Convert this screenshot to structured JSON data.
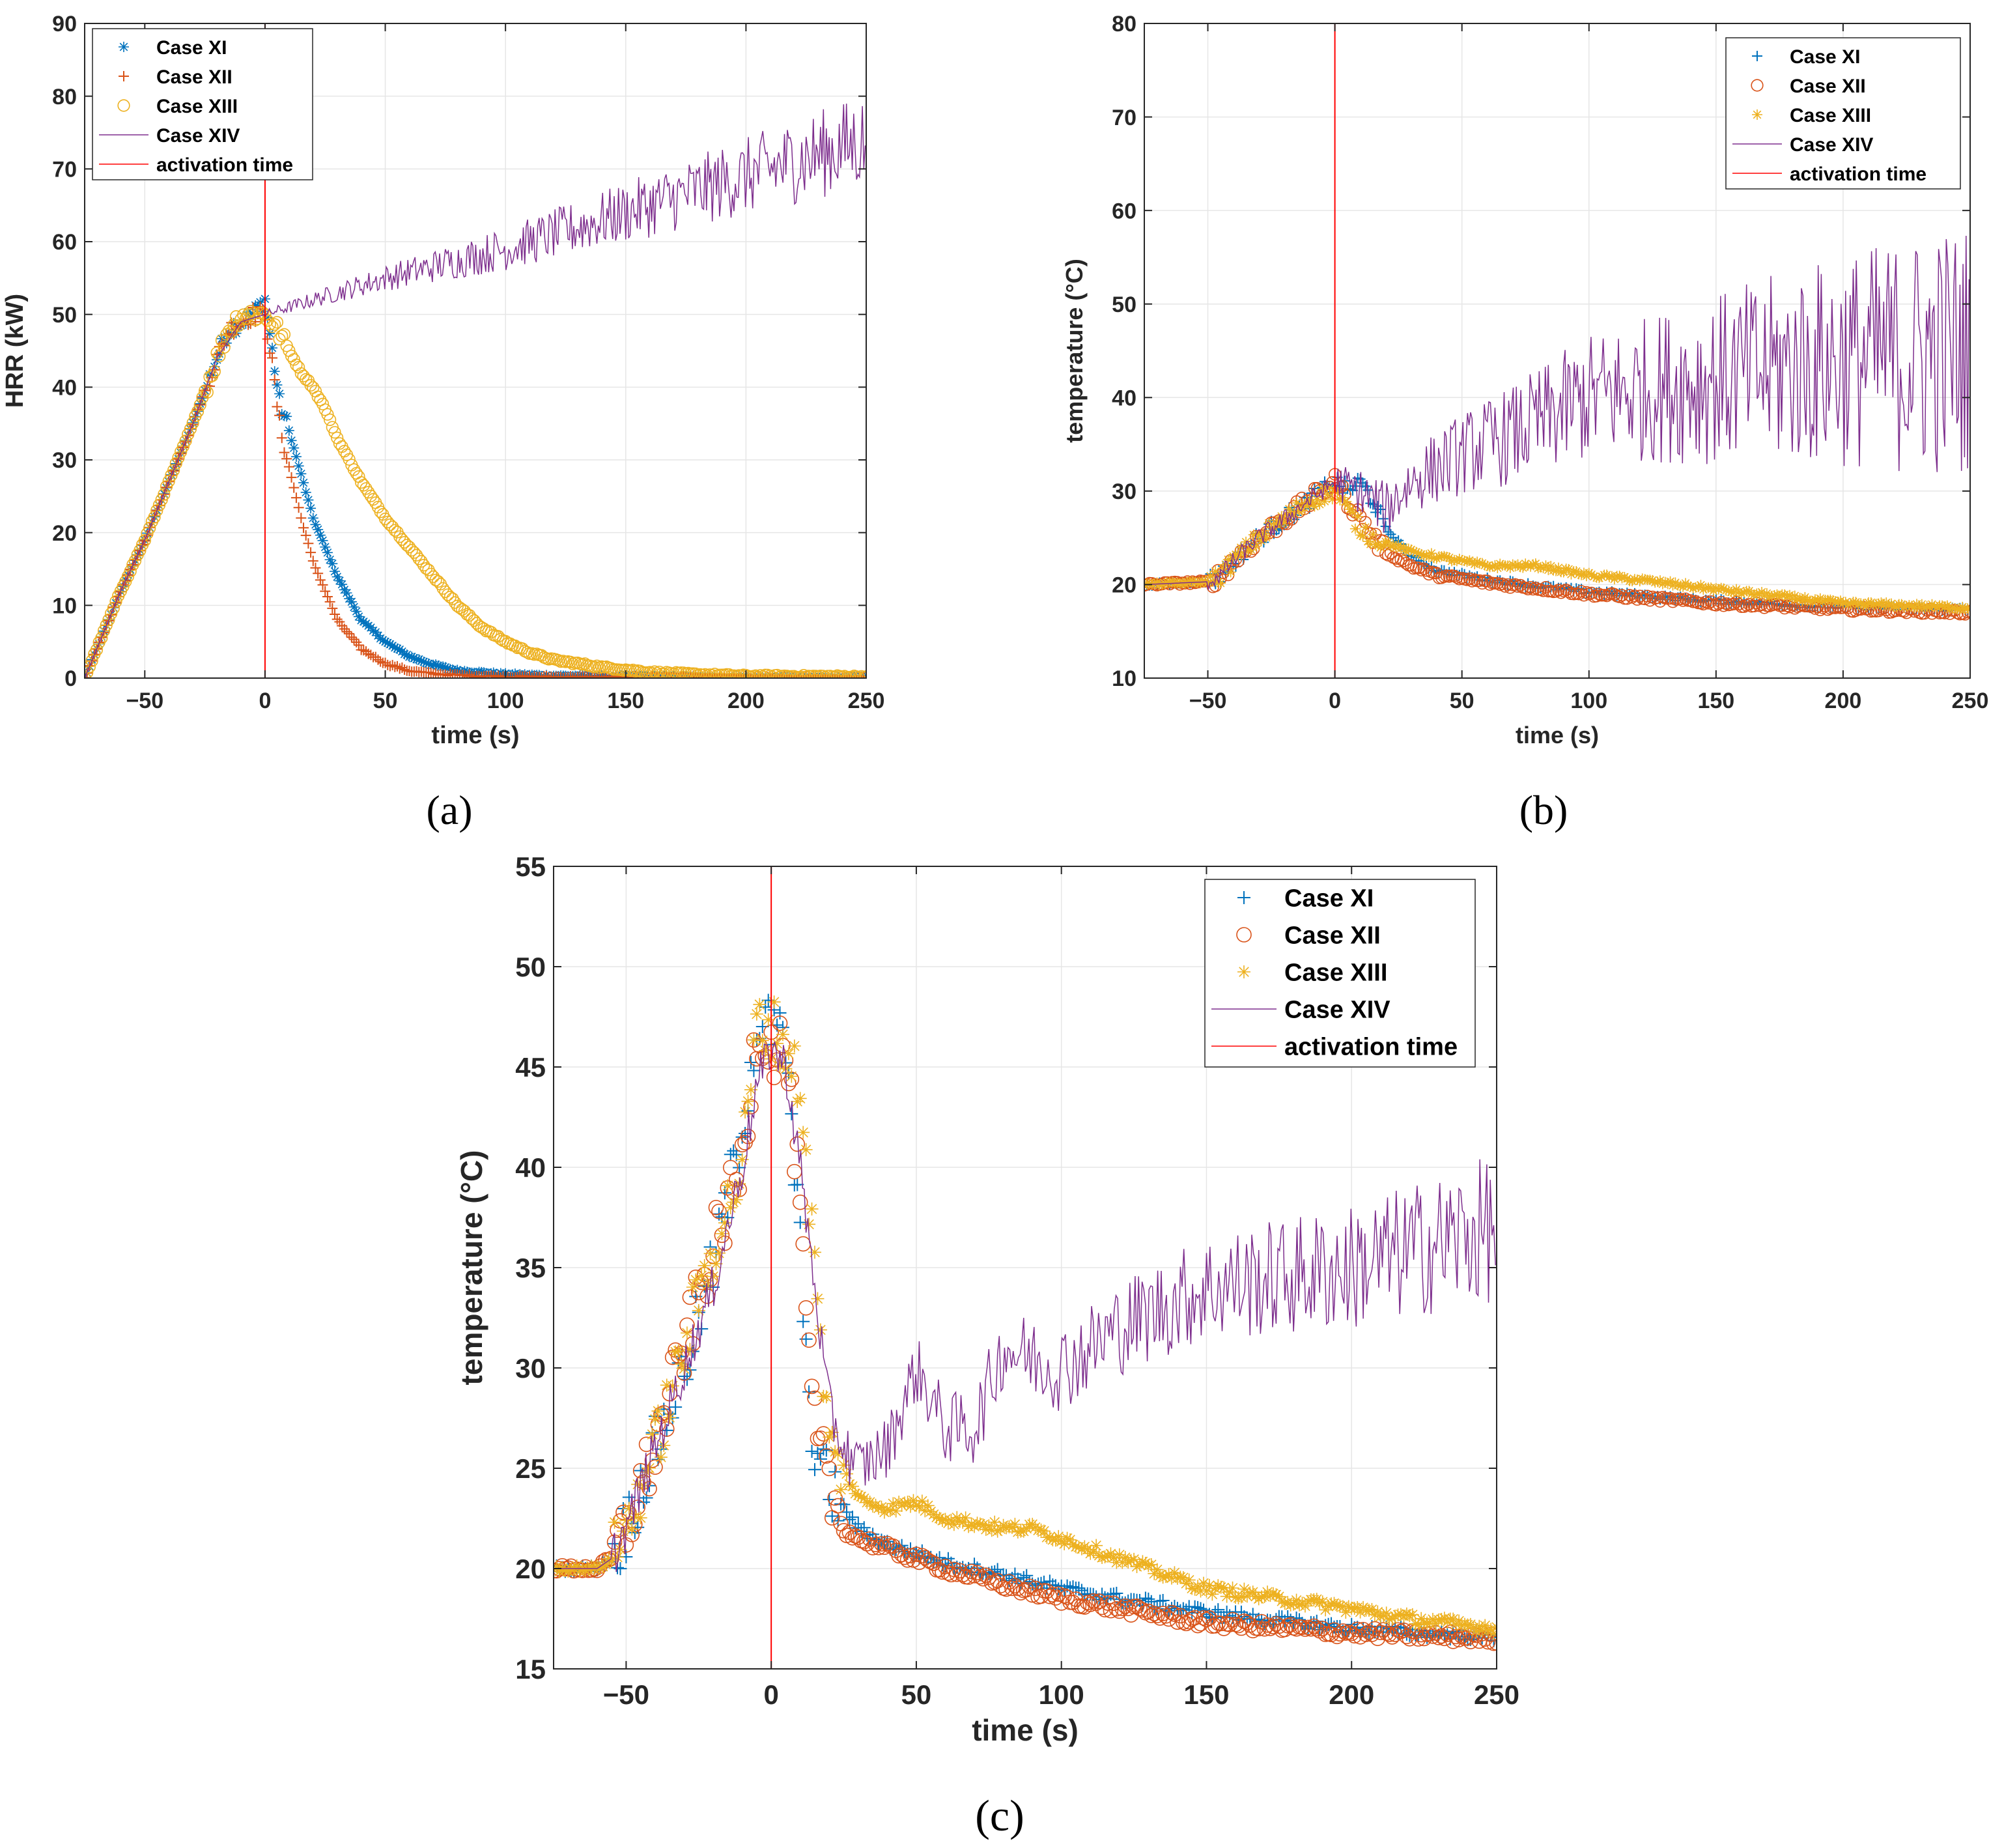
{
  "colors": {
    "case_xi": "#0072BD",
    "case_xii": "#D95319",
    "case_xiii": "#EDB120",
    "case_xiv": "#7E2F8E",
    "activation": "#FF0000",
    "grid": "#E6E6E6",
    "axis": "#262626"
  },
  "legend_labels": [
    "Case XI",
    "Case XII",
    "Case XIII",
    "Case XIV",
    "activation time"
  ],
  "chart_data": [
    {
      "type": "line",
      "panel_label": "(a)",
      "xlabel": "time (s)",
      "ylabel": "HRR (kW)",
      "xlim": [
        -75,
        250
      ],
      "ylim": [
        0,
        90
      ],
      "xticks": [
        -50,
        0,
        50,
        100,
        150,
        200,
        250
      ],
      "xtick_labels": [
        "−50",
        "0",
        "50",
        "100",
        "150",
        "200",
        "250"
      ],
      "yticks": [
        0,
        10,
        20,
        30,
        40,
        50,
        60,
        70,
        80,
        90
      ],
      "ytick_labels": [
        "0",
        "10",
        "20",
        "30",
        "40",
        "50",
        "60",
        "70",
        "80",
        "90"
      ],
      "grid": true,
      "legend_position": "top-left",
      "activation_time": 0,
      "series": [
        {
          "name": "Case XI",
          "marker": "asterisk",
          "x": [
            -75,
            -60,
            -50,
            -40,
            -30,
            -20,
            -15,
            -10,
            -5,
            0,
            3,
            6,
            10,
            15,
            20,
            25,
            30,
            35,
            40,
            50,
            60,
            70,
            80,
            100,
            120,
            150,
            200,
            250
          ],
          "y": [
            0,
            12,
            19,
            27,
            35,
            44,
            48,
            49,
            50,
            52,
            45,
            38,
            34,
            28,
            22,
            18,
            14,
            11,
            8,
            5,
            3,
            1.8,
            1,
            0.5,
            0.3,
            0.2,
            0.1,
            0.1
          ]
        },
        {
          "name": "Case XII",
          "marker": "plus",
          "x": [
            -75,
            -60,
            -50,
            -40,
            -30,
            -20,
            -15,
            -10,
            -5,
            0,
            3,
            6,
            10,
            15,
            20,
            25,
            30,
            35,
            40,
            50,
            60,
            70,
            80,
            100,
            150,
            200,
            250
          ],
          "y": [
            0,
            12,
            19,
            27,
            35,
            44,
            48,
            49,
            50,
            50,
            43,
            35,
            29,
            22,
            16,
            12,
            8,
            6,
            4,
            2,
            1,
            0.6,
            0.4,
            0.2,
            0.1,
            0.1,
            0.1
          ]
        },
        {
          "name": "Case XIII",
          "marker": "circle",
          "x": [
            -75,
            -60,
            -50,
            -40,
            -30,
            -20,
            -15,
            -10,
            -5,
            0,
            5,
            10,
            15,
            20,
            25,
            30,
            40,
            50,
            60,
            70,
            80,
            90,
            100,
            110,
            120,
            140,
            160,
            180,
            200,
            250
          ],
          "y": [
            0,
            12,
            19,
            27,
            35,
            44,
            48,
            50,
            50,
            50,
            48,
            45,
            42,
            40,
            37,
            33,
            27,
            22,
            18,
            14,
            10,
            7,
            5,
            3.5,
            2.5,
            1.5,
            0.8,
            0.5,
            0.3,
            0.2
          ]
        },
        {
          "name": "Case XIV",
          "marker": "none",
          "x": [
            -75,
            -60,
            -50,
            -40,
            -30,
            -20,
            -10,
            0,
            20,
            50,
            100,
            150,
            200,
            250
          ],
          "y": [
            0,
            12,
            19,
            27,
            35,
            44,
            49,
            50,
            52,
            55,
            59,
            64,
            69,
            74
          ]
        }
      ]
    },
    {
      "type": "line",
      "panel_label": "(b)",
      "xlabel": "time (s)",
      "ylabel": "temperature (°C)",
      "xlim": [
        -75,
        250
      ],
      "ylim": [
        10,
        80
      ],
      "xticks": [
        -50,
        0,
        50,
        100,
        150,
        200,
        250
      ],
      "xtick_labels": [
        "−50",
        "0",
        "50",
        "100",
        "150",
        "200",
        "250"
      ],
      "yticks": [
        10,
        20,
        30,
        40,
        50,
        60,
        70,
        80
      ],
      "ytick_labels": [
        "10",
        "20",
        "30",
        "40",
        "50",
        "60",
        "70",
        "80"
      ],
      "grid": true,
      "legend_position": "top-right",
      "activation_time": 0,
      "series": [
        {
          "name": "Case XI",
          "marker": "plus",
          "x": [
            -75,
            -50,
            -45,
            -40,
            -30,
            -20,
            -10,
            0,
            5,
            10,
            15,
            20,
            30,
            40,
            60,
            80,
            100,
            150,
            200,
            250
          ],
          "y": [
            20,
            20.3,
            21,
            22.5,
            25,
            27,
            29,
            31,
            30,
            31,
            29,
            26,
            23,
            21.5,
            20.5,
            19.8,
            19.2,
            18.2,
            17.6,
            17.3
          ]
        },
        {
          "name": "Case XII",
          "marker": "circle",
          "x": [
            -75,
            -50,
            -45,
            -40,
            -30,
            -20,
            -10,
            0,
            5,
            10,
            15,
            20,
            30,
            40,
            60,
            80,
            100,
            150,
            200,
            250
          ],
          "y": [
            20,
            20.3,
            21,
            22.5,
            25,
            27,
            29,
            31,
            29,
            27,
            25,
            23.5,
            22,
            21,
            20.2,
            19.6,
            19,
            18,
            17.4,
            17
          ]
        },
        {
          "name": "Case XIII",
          "marker": "asterisk",
          "x": [
            -75,
            -50,
            -45,
            -40,
            -30,
            -20,
            -10,
            0,
            5,
            10,
            15,
            20,
            30,
            40,
            50,
            60,
            70,
            80,
            90,
            100,
            120,
            150,
            200,
            250
          ],
          "y": [
            20,
            20.3,
            21,
            22.5,
            25,
            27,
            29,
            30,
            28,
            26,
            25,
            24.5,
            23.5,
            23,
            22.5,
            22,
            22,
            22,
            21.5,
            21,
            20.5,
            19.5,
            18,
            17.5
          ]
        },
        {
          "name": "Case XIV",
          "marker": "none",
          "x": [
            -75,
            -50,
            -45,
            -40,
            -30,
            -20,
            -10,
            0,
            10,
            20,
            30,
            50,
            70,
            100,
            150,
            200,
            250
          ],
          "y": [
            20,
            20.3,
            21,
            22.5,
            25,
            27,
            29,
            31,
            30,
            28,
            31,
            34,
            36,
            40,
            42,
            44,
            45
          ]
        }
      ]
    },
    {
      "type": "line",
      "panel_label": "(c)",
      "xlabel": "time (s)",
      "ylabel": "temperature (°C)",
      "xlim": [
        -75,
        250
      ],
      "ylim": [
        15,
        55
      ],
      "xticks": [
        -50,
        0,
        50,
        100,
        150,
        200,
        250
      ],
      "xtick_labels": [
        "−50",
        "0",
        "50",
        "100",
        "150",
        "200",
        "250"
      ],
      "yticks": [
        15,
        20,
        25,
        30,
        35,
        40,
        45,
        50,
        55
      ],
      "ytick_labels": [
        "15",
        "20",
        "25",
        "30",
        "35",
        "40",
        "45",
        "50",
        "55"
      ],
      "grid": true,
      "legend_position": "top-right",
      "activation_time": 0,
      "series": [
        {
          "name": "Case XI",
          "marker": "plus",
          "x": [
            -75,
            -60,
            -55,
            -50,
            -40,
            -30,
            -20,
            -10,
            -5,
            0,
            5,
            10,
            12,
            15,
            20,
            25,
            30,
            40,
            60,
            80,
            100,
            150,
            200,
            250
          ],
          "y": [
            20,
            20,
            20.5,
            22,
            26,
            30,
            35,
            42,
            47,
            47,
            46,
            36,
            30,
            26,
            24,
            23,
            22,
            21.2,
            20.3,
            19.7,
            19,
            17.8,
            17,
            16.6
          ]
        },
        {
          "name": "Case XII",
          "marker": "circle",
          "x": [
            -75,
            -60,
            -55,
            -50,
            -40,
            -30,
            -20,
            -10,
            -5,
            0,
            5,
            10,
            12,
            15,
            20,
            25,
            30,
            40,
            60,
            80,
            100,
            150,
            200,
            250
          ],
          "y": [
            20,
            20,
            20.5,
            22,
            26,
            31,
            36,
            40,
            47,
            46,
            46,
            38,
            32,
            27,
            24,
            22,
            21.5,
            21,
            20,
            19.2,
            18.5,
            17.3,
            16.8,
            16.5
          ]
        },
        {
          "name": "Case XIII",
          "marker": "asterisk",
          "x": [
            -75,
            -60,
            -55,
            -50,
            -40,
            -30,
            -20,
            -10,
            -5,
            0,
            5,
            10,
            15,
            20,
            25,
            30,
            40,
            50,
            60,
            80,
            90,
            100,
            120,
            150,
            200,
            220,
            250
          ],
          "y": [
            20,
            20,
            20.5,
            22,
            26,
            31,
            36,
            40,
            47,
            47,
            46,
            44,
            35,
            26,
            25,
            23.5,
            23,
            23.3,
            22.5,
            22,
            22,
            21.5,
            20.5,
            19,
            18,
            17.5,
            17
          ]
        },
        {
          "name": "Case XIV",
          "marker": "none",
          "x": [
            -75,
            -60,
            -55,
            -50,
            -40,
            -30,
            -20,
            -10,
            -5,
            0,
            5,
            10,
            15,
            20,
            25,
            30,
            40,
            50,
            60,
            70,
            80,
            100,
            120,
            150,
            200,
            250
          ],
          "y": [
            20,
            20,
            20.5,
            22,
            26,
            30,
            34,
            40,
            44,
            46,
            45,
            40,
            34,
            28,
            26,
            25,
            26,
            30,
            27,
            27,
            31,
            30,
            32,
            34,
            35,
            37
          ]
        }
      ]
    }
  ]
}
